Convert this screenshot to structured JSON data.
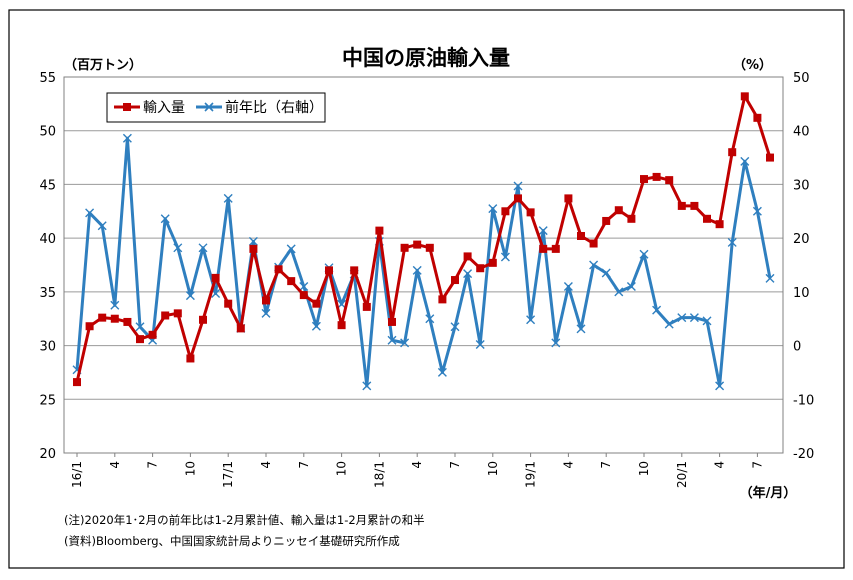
{
  "chart_data": {
    "type": "line",
    "title": "中国の原油輸入量",
    "left_unit": "（百万トン）",
    "right_unit": "（%）",
    "x_unit": "（年/月）",
    "left_ylim": [
      20,
      55
    ],
    "right_ylim": [
      -20,
      50
    ],
    "left_ticks": [
      "20",
      "25",
      "30",
      "35",
      "40",
      "45",
      "50",
      "55"
    ],
    "right_ticks": [
      "-20",
      "-10",
      "0",
      "10",
      "20",
      "30",
      "40",
      "50"
    ],
    "x_tick_labels": [
      "16/1",
      "4",
      "7",
      "10",
      "17/1",
      "4",
      "7",
      "10",
      "18/1",
      "4",
      "7",
      "10",
      "19/1",
      "4",
      "7",
      "10",
      "20/1",
      "4",
      "7"
    ],
    "grid": true,
    "legend_position": "top-left",
    "series": [
      {
        "name": "輸入量",
        "axis": "left",
        "color": "#c00000",
        "values": [
          26.6,
          31.8,
          32.6,
          32.5,
          32.2,
          30.6,
          31.0,
          32.8,
          33.0,
          28.8,
          32.4,
          36.3,
          33.9,
          31.6,
          39.0,
          34.2,
          37.1,
          36.0,
          34.7,
          33.9,
          37.0,
          31.9,
          37.0,
          33.6,
          40.7,
          32.2,
          39.1,
          39.4,
          39.1,
          34.3,
          36.1,
          38.3,
          37.2,
          37.7,
          42.5,
          43.7,
          42.4,
          39.0,
          39.0,
          43.7,
          40.2,
          39.5,
          41.6,
          42.6,
          41.8,
          45.5,
          45.7,
          45.4,
          43.0,
          43.0,
          41.8,
          41.3,
          48.0,
          53.2,
          51.2,
          47.5
        ]
      },
      {
        "name": "前年比（右軸）",
        "axis": "right",
        "color": "#2f7fbf",
        "values": [
          -4.5,
          24.7,
          22.3,
          7.5,
          38.6,
          3.5,
          1.0,
          23.6,
          18.2,
          9.3,
          18.2,
          9.7,
          27.4,
          3.2,
          19.4,
          6.0,
          14.6,
          18.0,
          11.0,
          3.6,
          14.5,
          7.7,
          13.3,
          -7.5,
          19.4,
          1.0,
          0.5,
          14.0,
          5.0,
          -5.0,
          3.5,
          13.4,
          0.2,
          25.5,
          16.5,
          29.7,
          4.8,
          21.4,
          0.5,
          11.0,
          3.1,
          15.0,
          13.5,
          10.0,
          11.0,
          17.0,
          6.6,
          4.0,
          5.2,
          5.2,
          4.6,
          -7.5,
          19.2,
          34.3,
          25.0,
          12.5
        ]
      }
    ]
  },
  "notes": {
    "line1": "(注)2020年1･2月の前年比は1-2月累計値、輸入量は1-2月累計の和半",
    "line2": "(資料)Bloomberg、中国国家統計局よりニッセイ基礎研究所作成"
  }
}
